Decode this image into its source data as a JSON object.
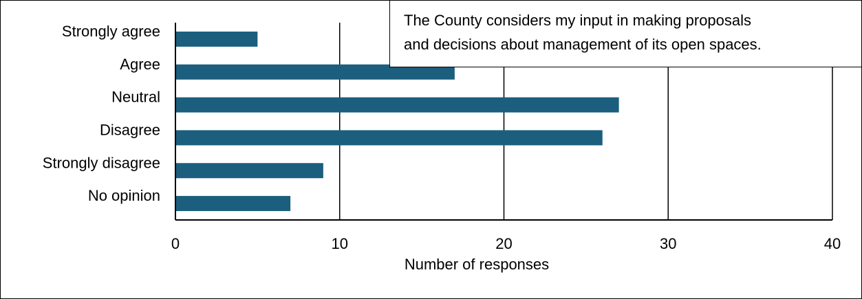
{
  "chart_data": {
    "type": "bar",
    "orientation": "horizontal",
    "title": "The County considers my input in making proposals and decisions about management of its open spaces.",
    "title_lines": [
      "The County considers my input in making proposals",
      "and decisions about management of its open spaces."
    ],
    "categories": [
      "Strongly agree",
      "Agree",
      "Neutral",
      "Disagree",
      "Strongly disagree",
      "No opinion"
    ],
    "values": [
      5,
      17,
      27,
      26,
      9,
      7
    ],
    "xlabel": "Number of responses",
    "ylabel": "",
    "xlim": [
      0,
      40
    ],
    "xticks": [
      0,
      10,
      20,
      30,
      40
    ],
    "xtick_labels": [
      "0",
      "10",
      "20",
      "30",
      "40"
    ],
    "grid": "vertical",
    "legend": "none",
    "title_placement": "top-right boxed",
    "bar_color": "#1b5e7e"
  }
}
